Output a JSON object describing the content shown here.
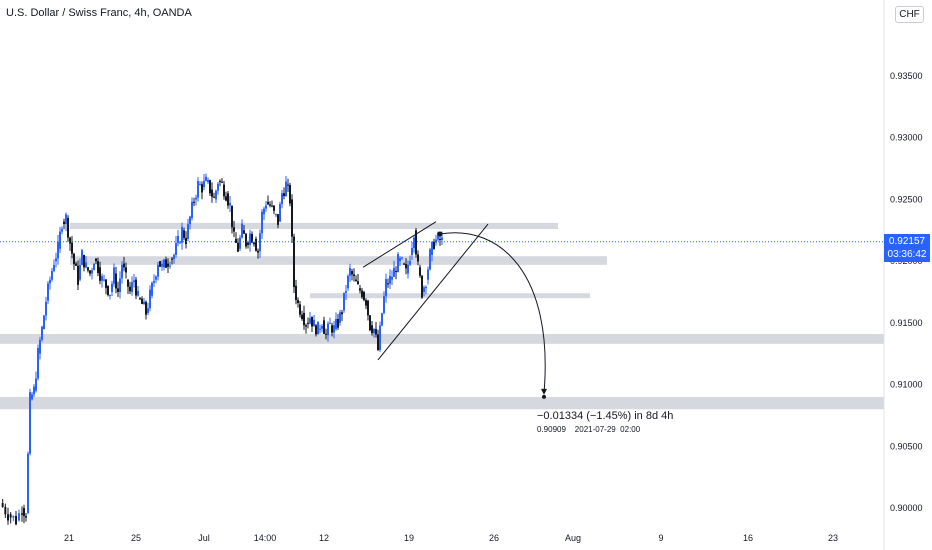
{
  "header": {
    "symbol_title": "U.S. Dollar / Swiss Franc, 4h, OANDA",
    "currency": "CHF"
  },
  "last_price": {
    "value": "0.92157",
    "countdown": "03:36:42",
    "color": "#2962ff"
  },
  "measurement": {
    "change_text": "−0.01334 (−1.45%) in 8d 4h",
    "detail_text": "0.90909    2021-07-29  02:00"
  },
  "chart_data": {
    "type": "candlestick",
    "title": "U.S. Dollar / Swiss Franc, 4h, OANDA",
    "x_ticks": [
      "21",
      "25",
      "Jul",
      "14:00",
      "12",
      "19",
      "26",
      "Aug",
      "9",
      "16",
      "23"
    ],
    "y_ticks": [
      0.935,
      0.93,
      0.925,
      0.92,
      0.915,
      0.91,
      0.905,
      0.9
    ],
    "y_tick_labels": [
      "0.93500",
      "0.93000",
      "0.92500",
      "0.92000",
      "0.91500",
      "0.91000",
      "0.90500",
      "0.90000"
    ],
    "ylim": [
      0.8988,
      0.9395
    ],
    "last_price": 0.92157,
    "candle_colors": {
      "up": "#2962ff",
      "down": "#131722"
    },
    "candle_path": [
      [
        0,
        0.9004
      ],
      [
        8,
        0.8995
      ],
      [
        16,
        0.899
      ],
      [
        22,
        0.9
      ],
      [
        26,
        0.8996
      ],
      [
        30,
        0.9088
      ],
      [
        34,
        0.9095
      ],
      [
        38,
        0.9125
      ],
      [
        42,
        0.9145
      ],
      [
        46,
        0.9168
      ],
      [
        50,
        0.9185
      ],
      [
        54,
        0.92
      ],
      [
        58,
        0.921
      ],
      [
        62,
        0.9232
      ],
      [
        66,
        0.9235
      ],
      [
        70,
        0.9215
      ],
      [
        74,
        0.9198
      ],
      [
        78,
        0.9185
      ],
      [
        82,
        0.9205
      ],
      [
        86,
        0.9195
      ],
      [
        90,
        0.919
      ],
      [
        94,
        0.9202
      ],
      [
        98,
        0.9195
      ],
      [
        102,
        0.9185
      ],
      [
        106,
        0.918
      ],
      [
        110,
        0.9175
      ],
      [
        114,
        0.919
      ],
      [
        118,
        0.9175
      ],
      [
        122,
        0.9198
      ],
      [
        126,
        0.9185
      ],
      [
        130,
        0.9175
      ],
      [
        134,
        0.9185
      ],
      [
        138,
        0.917
      ],
      [
        142,
        0.9165
      ],
      [
        146,
        0.9158
      ],
      [
        150,
        0.9172
      ],
      [
        154,
        0.9185
      ],
      [
        158,
        0.92
      ],
      [
        162,
        0.9195
      ],
      [
        166,
        0.9198
      ],
      [
        170,
        0.9202
      ],
      [
        174,
        0.9205
      ],
      [
        178,
        0.9215
      ],
      [
        182,
        0.9225
      ],
      [
        186,
        0.9218
      ],
      [
        190,
        0.9235
      ],
      [
        194,
        0.925
      ],
      [
        198,
        0.9262
      ],
      [
        202,
        0.926
      ],
      [
        206,
        0.9264
      ],
      [
        210,
        0.9258
      ],
      [
        214,
        0.925
      ],
      [
        218,
        0.9265
      ],
      [
        222,
        0.9262
      ],
      [
        226,
        0.9255
      ],
      [
        230,
        0.9245
      ],
      [
        234,
        0.9218
      ],
      [
        238,
        0.921
      ],
      [
        242,
        0.9225
      ],
      [
        246,
        0.9215
      ],
      [
        250,
        0.9222
      ],
      [
        254,
        0.9218
      ],
      [
        258,
        0.9208
      ],
      [
        262,
        0.9238
      ],
      [
        266,
        0.9248
      ],
      [
        270,
        0.9245
      ],
      [
        274,
        0.9238
      ],
      [
        278,
        0.9232
      ],
      [
        282,
        0.9255
      ],
      [
        286,
        0.9262
      ],
      [
        290,
        0.925
      ],
      [
        294,
        0.918
      ],
      [
        298,
        0.9165
      ],
      [
        302,
        0.9158
      ],
      [
        306,
        0.915
      ],
      [
        310,
        0.9155
      ],
      [
        314,
        0.9148
      ],
      [
        318,
        0.9145
      ],
      [
        322,
        0.9152
      ],
      [
        326,
        0.914
      ],
      [
        330,
        0.9148
      ],
      [
        334,
        0.9145
      ],
      [
        338,
        0.915
      ],
      [
        342,
        0.916
      ],
      [
        346,
        0.9178
      ],
      [
        350,
        0.9192
      ],
      [
        354,
        0.9185
      ],
      [
        358,
        0.9178
      ],
      [
        362,
        0.9175
      ],
      [
        366,
        0.9168
      ],
      [
        370,
        0.9148
      ],
      [
        374,
        0.9145
      ],
      [
        378,
        0.9128
      ],
      [
        382,
        0.9158
      ],
      [
        386,
        0.9182
      ],
      [
        390,
        0.9185
      ],
      [
        394,
        0.9192
      ],
      [
        398,
        0.92
      ],
      [
        402,
        0.9198
      ],
      [
        406,
        0.919
      ],
      [
        410,
        0.9205
      ],
      [
        414,
        0.9225
      ],
      [
        418,
        0.9195
      ],
      [
        422,
        0.9175
      ],
      [
        426,
        0.9185
      ],
      [
        430,
        0.9205
      ],
      [
        434,
        0.9215
      ],
      [
        438,
        0.9218
      ],
      [
        442,
        0.9216
      ]
    ],
    "support_resistance_zones": [
      {
        "from_x": 70,
        "to_x": 558,
        "low": 0.9226,
        "high": 0.9231
      },
      {
        "from_x": 70,
        "to_x": 607,
        "low": 0.9197,
        "high": 0.9204
      },
      {
        "from_x": 310,
        "to_x": 590,
        "low": 0.917,
        "high": 0.9174
      },
      {
        "from_x": 0,
        "to_x": 884,
        "low": 0.9133,
        "high": 0.9141
      },
      {
        "from_x": 0,
        "to_x": 884,
        "low": 0.908,
        "high": 0.909
      }
    ],
    "wedge": {
      "upper": [
        [
          363,
          0.9195
        ],
        [
          436,
          0.9232
        ]
      ],
      "lower": [
        [
          378,
          0.912
        ],
        [
          488,
          0.923
        ]
      ]
    },
    "projection": {
      "start": [
        440,
        0.9222
      ],
      "end": [
        544,
        0.909
      ],
      "target_price": 0.90909,
      "change": -0.01334,
      "change_pct": -1.45
    },
    "gridlines": false
  }
}
